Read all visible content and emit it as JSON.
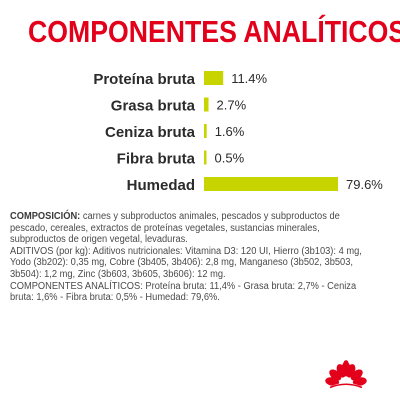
{
  "title": "COMPONENTES ANALÍTICOS",
  "chart_data": {
    "type": "bar",
    "orientation": "horizontal",
    "categories": [
      "Proteína bruta",
      "Grasa bruta",
      "Ceniza bruta",
      "Fibra bruta",
      "Humedad"
    ],
    "values": [
      11.4,
      2.7,
      1.6,
      0.5,
      79.6
    ],
    "value_labels": [
      "11.4%",
      "2.7%",
      "1.6%",
      "0.5%",
      "79.6%"
    ],
    "bar_color": "#c8d400",
    "xlim": [
      0,
      79.6
    ],
    "grid": false
  },
  "composition": {
    "label": "COMPOSICIÓN:",
    "text": " carnes y subproductos animales, pescados y subproductos de pescado, cereales, extractos de proteínas vegetales, sustancias minerales, subproductos de origen vegetal, levaduras."
  },
  "additives": {
    "text": "ADITIVOS (por kg): Aditivos nutricionales: Vitamina D3: 120 UI, Hierro (3b103): 4 mg, Yodo (3b202): 0,35 mg, Cobre (3b405, 3b406): 2,8 mg, Manganeso (3b502, 3b503, 3b504): 1,2 mg, Zinc (3b603, 3b605, 3b606): 12 mg."
  },
  "analytical": {
    "text": "COMPONENTES ANALÍTICOS: Proteína bruta: 11,4% - Grasa bruta: 2,7% - Ceniza bruta: 1,6% - Fibra bruta: 0,5% - Humedad: 79,6%."
  },
  "logo": {
    "icon": "royal-canin-crown-logo",
    "color": "#e2001a"
  }
}
